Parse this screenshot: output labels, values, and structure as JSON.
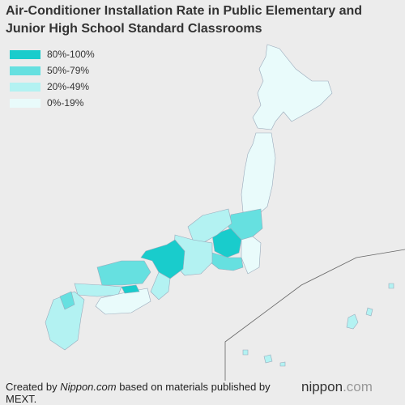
{
  "header": {
    "title_lines": [
      "Air-Conditioner Installation Rate in Public Elementary and",
      "Junior High School Standard Classrooms"
    ]
  },
  "legend": [
    {
      "label": "80%-100%",
      "color": "#19cccc"
    },
    {
      "label": "50%-79%",
      "color": "#66e0e0"
    },
    {
      "label": "20%-49%",
      "color": "#b3f2f2"
    },
    {
      "label": "0%-19%",
      "color": "#e9fbfb"
    }
  ],
  "source": {
    "prefix": "Created by ",
    "emphasis": "Nippon.com",
    "suffix": " based on materials published by MEXT."
  },
  "logo": {
    "main": "nippon",
    "suffix": ".com"
  }
}
